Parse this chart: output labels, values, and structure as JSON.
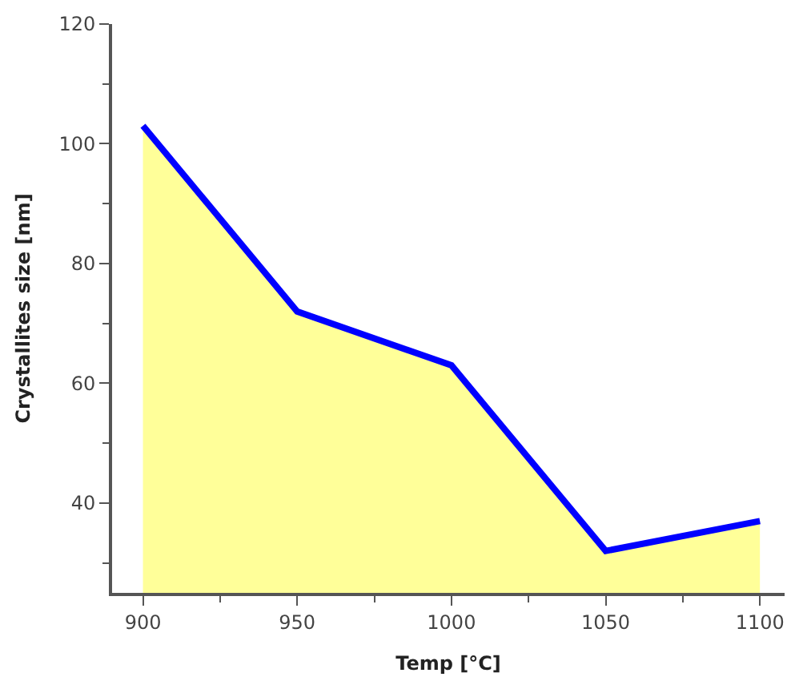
{
  "chart_data": {
    "type": "area",
    "x": [
      900,
      950,
      1000,
      1050,
      1100
    ],
    "series": [
      {
        "color": "#ffff99",
        "values": [
          103,
          72,
          63,
          32,
          37
        ]
      },
      {
        "type": "line",
        "color": "#0000ff",
        "values": [
          103,
          72,
          63,
          32,
          37
        ]
      }
    ],
    "xlabel": "Temp [°C]",
    "ylabel": "Crystallites size [nm]",
    "xlim": [
      890,
      1108
    ],
    "ylim": [
      25,
      120
    ],
    "xticks": [
      900,
      950,
      1000,
      1050,
      1100
    ],
    "yticks": [
      40,
      60,
      80,
      100,
      120
    ],
    "marker": "none",
    "line_style": "solid"
  }
}
